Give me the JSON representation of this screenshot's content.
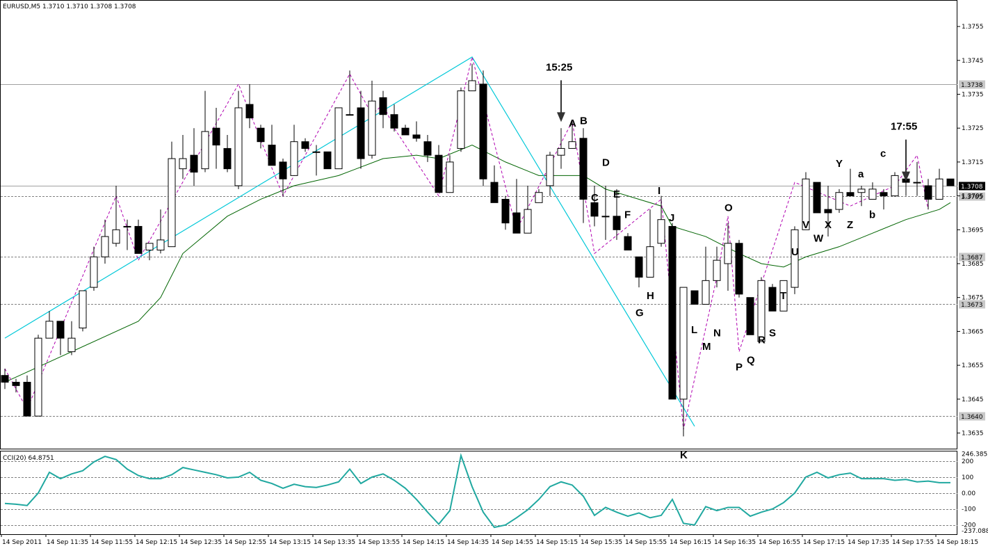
{
  "header": {
    "title": "EURUSD,M5  1.3710 1.3710 1.3708 1.3708"
  },
  "cci_header": "CCI(20) 64.8751",
  "colors": {
    "cci": "#20a8a0",
    "ma": "#006400",
    "trend": "#00c8d8",
    "zigzag": "#b000b0",
    "grid": "#808080"
  },
  "price_axis": {
    "ticks": [
      "1.3755",
      "1.3745",
      "1.3735",
      "1.3725",
      "1.3715",
      "1.3705",
      "1.3695",
      "1.3685",
      "1.3675",
      "1.3665",
      "1.3655",
      "1.3645",
      "1.3635"
    ],
    "ylim": [
      1.3631,
      1.3762
    ]
  },
  "price_levels": [
    {
      "value": 1.3738,
      "label": "1.3738",
      "style": "solid"
    },
    {
      "value": 1.3708,
      "label": "1.3708",
      "style": "solid",
      "highlight": true
    },
    {
      "value": 1.3705,
      "label": "1.3705",
      "style": "dashed"
    },
    {
      "value": 1.3687,
      "label": "1.3687",
      "style": "dashed"
    },
    {
      "value": 1.3673,
      "label": "1.3673",
      "style": "dashed"
    },
    {
      "value": 1.364,
      "label": "1.3640",
      "style": "dashed"
    }
  ],
  "cci_axis": {
    "ticks": [
      "246.3855",
      "200",
      "100",
      "0.00",
      "-100",
      "-200",
      "-237.088"
    ],
    "ylim": [
      -245,
      252
    ]
  },
  "time_axis": [
    "14 Sep 2011",
    "14 Sep 11:35",
    "14 Sep 11:55",
    "14 Sep 12:15",
    "14 Sep 12:35",
    "14 Sep 12:55",
    "14 Sep 13:15",
    "14 Sep 13:35",
    "14 Sep 13:55",
    "14 Sep 14:15",
    "14 Sep 14:35",
    "14 Sep 14:55",
    "14 Sep 15:15",
    "14 Sep 15:35",
    "14 Sep 15:55",
    "14 Sep 16:15",
    "14 Sep 16:35",
    "14 Sep 16:55",
    "14 Sep 17:15",
    "14 Sep 17:35",
    "14 Sep 17:55",
    "14 Sep 18:15"
  ],
  "annotations": [
    {
      "text": "15:25",
      "bar": 50,
      "price": 1.3742
    },
    {
      "text": "17:55",
      "bar": 81,
      "price": 1.37245
    }
  ],
  "chart_data": {
    "type": "candlestick",
    "symbol": "EURUSD",
    "timeframe": "M5",
    "candles": [
      [
        1.3652,
        1.3654,
        1.3648,
        1.365
      ],
      [
        1.365,
        1.3651,
        1.3647,
        1.3649
      ],
      [
        1.365,
        1.3652,
        1.364,
        1.364
      ],
      [
        1.364,
        1.3664,
        1.364,
        1.3663
      ],
      [
        1.3663,
        1.3671,
        1.3663,
        1.3668
      ],
      [
        1.3668,
        1.3668,
        1.3658,
        1.3663
      ],
      [
        1.3659,
        1.3668,
        1.3658,
        1.3663
      ],
      [
        1.3666,
        1.3677,
        1.3665,
        1.3677
      ],
      [
        1.3678,
        1.369,
        1.3677,
        1.3687
      ],
      [
        1.3687,
        1.3698,
        1.3685,
        1.3693
      ],
      [
        1.3691,
        1.3708,
        1.369,
        1.3695
      ],
      [
        1.3696,
        1.3698,
        1.3689,
        1.3696
      ],
      [
        1.3696,
        1.3698,
        1.3689,
        1.3688
      ],
      [
        1.3689,
        1.369,
        1.3686,
        1.3691
      ],
      [
        1.3689,
        1.3701,
        1.3688,
        1.3692
      ],
      [
        1.369,
        1.3721,
        1.369,
        1.3716
      ],
      [
        1.3713,
        1.3723,
        1.371,
        1.3716
      ],
      [
        1.3717,
        1.3725,
        1.3708,
        1.3712
      ],
      [
        1.3713,
        1.3736,
        1.3712,
        1.3724
      ],
      [
        1.3725,
        1.3731,
        1.3713,
        1.372
      ],
      [
        1.3719,
        1.3723,
        1.3712,
        1.3713
      ],
      [
        1.3708,
        1.3736,
        1.3707,
        1.3731
      ],
      [
        1.3732,
        1.3738,
        1.3725,
        1.3728
      ],
      [
        1.3725,
        1.3726,
        1.3719,
        1.3721
      ],
      [
        1.372,
        1.3726,
        1.3714,
        1.3714
      ],
      [
        1.3715,
        1.3716,
        1.3705,
        1.371
      ],
      [
        1.3711,
        1.3726,
        1.3711,
        1.3721
      ],
      [
        1.3721,
        1.3722,
        1.3718,
        1.3719
      ],
      [
        1.3718,
        1.372,
        1.3711,
        1.3718
      ],
      [
        1.3718,
        1.3718,
        1.3713,
        1.3713
      ],
      [
        1.3713,
        1.3731,
        1.3713,
        1.3731
      ],
      [
        1.3729,
        1.3742,
        1.3729,
        1.3729
      ],
      [
        1.3731,
        1.3736,
        1.3713,
        1.3716
      ],
      [
        1.3717,
        1.3739,
        1.3716,
        1.3733
      ],
      [
        1.3734,
        1.3736,
        1.3725,
        1.3729
      ],
      [
        1.3729,
        1.3732,
        1.3724,
        1.3725
      ],
      [
        1.3725,
        1.3726,
        1.3723,
        1.3723
      ],
      [
        1.3723,
        1.3727,
        1.3721,
        1.3722
      ],
      [
        1.3721,
        1.3723,
        1.3715,
        1.3717
      ],
      [
        1.3717,
        1.372,
        1.3707,
        1.3706
      ],
      [
        1.3706,
        1.3717,
        1.3706,
        1.3715
      ],
      [
        1.3719,
        1.3737,
        1.3718,
        1.3736
      ],
      [
        1.3736,
        1.3744,
        1.3736,
        1.3739
      ],
      [
        1.3738,
        1.3742,
        1.3708,
        1.371
      ],
      [
        1.3709,
        1.3714,
        1.3704,
        1.3703
      ],
      [
        1.3704,
        1.3705,
        1.3695,
        1.3697
      ],
      [
        1.37,
        1.371,
        1.3694,
        1.3694
      ],
      [
        1.3694,
        1.3708,
        1.3694,
        1.3701
      ],
      [
        1.3703,
        1.3707,
        1.3703,
        1.3706
      ],
      [
        1.3708,
        1.3718,
        1.3705,
        1.3717
      ],
      [
        1.3717,
        1.3725,
        1.3713,
        1.3719
      ],
      [
        1.3719,
        1.3727,
        1.3719,
        1.3721
      ],
      [
        1.3722,
        1.3725,
        1.3697,
        1.3704
      ],
      [
        1.3703,
        1.3708,
        1.3696,
        1.3699
      ],
      [
        1.3699,
        1.3708,
        1.3692,
        1.3699
      ],
      [
        1.3699,
        1.3707,
        1.3692,
        1.3695
      ],
      [
        1.3693,
        1.3694,
        1.3689,
        1.3689
      ],
      [
        1.3687,
        1.3687,
        1.3678,
        1.3681
      ],
      [
        1.3681,
        1.3701,
        1.3681,
        1.369
      ],
      [
        1.3691,
        1.3705,
        1.369,
        1.3698
      ],
      [
        1.3696,
        1.3697,
        1.3645,
        1.3645
      ],
      [
        1.3645,
        1.3678,
        1.3634,
        1.3678
      ],
      [
        1.3677,
        1.3677,
        1.3673,
        1.3673
      ],
      [
        1.3673,
        1.369,
        1.3673,
        1.368
      ],
      [
        1.368,
        1.369,
        1.3678,
        1.3686
      ],
      [
        1.3685,
        1.3697,
        1.3677,
        1.3691
      ],
      [
        1.3691,
        1.3692,
        1.3675,
        1.3676
      ],
      [
        1.3675,
        1.3675,
        1.3664,
        1.3664
      ],
      [
        1.3662,
        1.3681,
        1.3662,
        1.368
      ],
      [
        1.3678,
        1.3679,
        1.3671,
        1.3671
      ],
      [
        1.3671,
        1.368,
        1.3671,
        1.368
      ],
      [
        1.3678,
        1.3696,
        1.3676,
        1.3695
      ],
      [
        1.3695,
        1.3712,
        1.3695,
        1.371
      ],
      [
        1.3709,
        1.3709,
        1.37,
        1.37
      ],
      [
        1.3701,
        1.3708,
        1.3693,
        1.37
      ],
      [
        1.3701,
        1.3707,
        1.37,
        1.3706
      ],
      [
        1.3706,
        1.3713,
        1.3705,
        1.3705
      ],
      [
        1.3706,
        1.3708,
        1.3702,
        1.3707
      ],
      [
        1.3704,
        1.3709,
        1.3704,
        1.3707
      ],
      [
        1.3706,
        1.3707,
        1.3701,
        1.3705
      ],
      [
        1.3705,
        1.3712,
        1.3705,
        1.3711
      ],
      [
        1.371,
        1.3712,
        1.3705,
        1.3709
      ],
      [
        1.3709,
        1.3715,
        1.3705,
        1.3709
      ],
      [
        1.3708,
        1.371,
        1.3701,
        1.3704
      ],
      [
        1.3704,
        1.3713,
        1.3704,
        1.371
      ],
      [
        1.371,
        1.371,
        1.3708,
        1.3708
      ]
    ],
    "ma": [
      [
        0,
        1.365
      ],
      [
        6,
        1.3659
      ],
      [
        12,
        1.3668
      ],
      [
        14,
        1.3675
      ],
      [
        16,
        1.3688
      ],
      [
        20,
        1.3699
      ],
      [
        23,
        1.3704
      ],
      [
        26,
        1.3708
      ],
      [
        30,
        1.3711
      ],
      [
        34,
        1.3716
      ],
      [
        37,
        1.3717
      ],
      [
        39,
        1.3716
      ],
      [
        42,
        1.372
      ],
      [
        45,
        1.3715
      ],
      [
        48,
        1.3711
      ],
      [
        50,
        1.3711
      ],
      [
        52,
        1.3711
      ],
      [
        54,
        1.3707
      ],
      [
        57,
        1.3704
      ],
      [
        59,
        1.3702
      ],
      [
        60,
        1.3696
      ],
      [
        63,
        1.3693
      ],
      [
        66,
        1.3688
      ],
      [
        68,
        1.3685
      ],
      [
        70,
        1.3684
      ],
      [
        72,
        1.3687
      ],
      [
        75,
        1.369
      ],
      [
        78,
        1.3694
      ],
      [
        81,
        1.3698
      ],
      [
        84,
        1.3701
      ],
      [
        85,
        1.3703
      ]
    ],
    "trendline": [
      [
        0,
        1.3663
      ],
      [
        42,
        1.3746
      ],
      [
        62,
        1.3637
      ]
    ],
    "zigzag": [
      [
        0,
        1.3654
      ],
      [
        2,
        1.3642
      ],
      [
        10,
        1.3705
      ],
      [
        12,
        1.3686
      ],
      [
        21,
        1.3738
      ],
      [
        25,
        1.3705
      ],
      [
        31,
        1.3741
      ],
      [
        33,
        1.3729
      ],
      [
        34,
        1.3732
      ],
      [
        35,
        1.3725
      ],
      [
        39,
        1.3705
      ],
      [
        42,
        1.3746
      ],
      [
        46,
        1.3695
      ],
      [
        51,
        1.3727
      ],
      [
        53,
        1.3688
      ],
      [
        59,
        1.3704
      ],
      [
        61,
        1.3636
      ],
      [
        64,
        1.3681
      ],
      [
        65,
        1.3699
      ],
      [
        66,
        1.3659
      ],
      [
        71,
        1.3709
      ],
      [
        76,
        1.3702
      ],
      [
        80,
        1.3708
      ],
      [
        82,
        1.3717
      ],
      [
        83,
        1.3701
      ]
    ],
    "point_labels": [
      {
        "text": "A",
        "bar": 51,
        "price": 1.37255
      },
      {
        "text": "B",
        "bar": 52,
        "price": 1.37262
      },
      {
        "text": "C",
        "bar": 53,
        "price": 1.37035
      },
      {
        "text": "D",
        "bar": 54,
        "price": 1.37138
      },
      {
        "text": "E",
        "bar": 55,
        "price": 1.37045
      },
      {
        "text": "F",
        "bar": 56,
        "price": 1.36985
      },
      {
        "text": "G",
        "bar": 57,
        "price": 1.36695
      },
      {
        "text": "H",
        "bar": 58,
        "price": 1.36745
      },
      {
        "text": "I",
        "bar": 59,
        "price": 1.37055
      },
      {
        "text": "J",
        "bar": 60,
        "price": 1.36975
      },
      {
        "text": "K",
        "bar": 61,
        "price": 1.36275
      },
      {
        "text": "L",
        "bar": 62,
        "price": 1.36645
      },
      {
        "text": "M",
        "bar": 63,
        "price": 1.36595
      },
      {
        "text": "N",
        "bar": 64,
        "price": 1.36635
      },
      {
        "text": "O",
        "bar": 65,
        "price": 1.37005
      },
      {
        "text": "P",
        "bar": 66,
        "price": 1.36535
      },
      {
        "text": "Q",
        "bar": 67,
        "price": 1.36555
      },
      {
        "text": "R",
        "bar": 68,
        "price": 1.36615
      },
      {
        "text": "S",
        "bar": 69,
        "price": 1.36635
      },
      {
        "text": "T",
        "bar": 70,
        "price": 1.36745
      },
      {
        "text": "U",
        "bar": 71,
        "price": 1.36875
      },
      {
        "text": "V",
        "bar": 72,
        "price": 1.36955
      },
      {
        "text": "W",
        "bar": 73,
        "price": 1.36915
      },
      {
        "text": "X",
        "bar": 74,
        "price": 1.36955
      },
      {
        "text": "Y",
        "bar": 75,
        "price": 1.37135
      },
      {
        "text": "Z",
        "bar": 76,
        "price": 1.36955
      },
      {
        "text": "a",
        "bar": 77,
        "price": 1.37105
      },
      {
        "text": "b",
        "bar": 78,
        "price": 1.36985
      },
      {
        "text": "c",
        "bar": 79,
        "price": 1.37165
      }
    ],
    "cci": [
      [
        0,
        -65
      ],
      [
        1,
        -70
      ],
      [
        2,
        -78
      ],
      [
        3,
        0
      ],
      [
        4,
        130
      ],
      [
        5,
        90
      ],
      [
        6,
        120
      ],
      [
        7,
        140
      ],
      [
        8,
        195
      ],
      [
        9,
        230
      ],
      [
        10,
        210
      ],
      [
        11,
        150
      ],
      [
        12,
        110
      ],
      [
        13,
        90
      ],
      [
        14,
        90
      ],
      [
        15,
        115
      ],
      [
        16,
        160
      ],
      [
        17,
        145
      ],
      [
        18,
        130
      ],
      [
        19,
        115
      ],
      [
        20,
        95
      ],
      [
        21,
        100
      ],
      [
        22,
        130
      ],
      [
        23,
        80
      ],
      [
        24,
        60
      ],
      [
        25,
        30
      ],
      [
        26,
        55
      ],
      [
        27,
        40
      ],
      [
        28,
        35
      ],
      [
        29,
        50
      ],
      [
        30,
        70
      ],
      [
        31,
        150
      ],
      [
        32,
        60
      ],
      [
        33,
        100
      ],
      [
        34,
        120
      ],
      [
        35,
        80
      ],
      [
        36,
        30
      ],
      [
        37,
        -40
      ],
      [
        38,
        -120
      ],
      [
        39,
        -195
      ],
      [
        40,
        -110
      ],
      [
        41,
        235
      ],
      [
        42,
        40
      ],
      [
        43,
        -120
      ],
      [
        44,
        -215
      ],
      [
        45,
        -200
      ],
      [
        46,
        -155
      ],
      [
        47,
        -105
      ],
      [
        48,
        -40
      ],
      [
        49,
        40
      ],
      [
        50,
        70
      ],
      [
        51,
        50
      ],
      [
        52,
        -20
      ],
      [
        53,
        -140
      ],
      [
        54,
        -90
      ],
      [
        55,
        -120
      ],
      [
        56,
        -145
      ],
      [
        57,
        -125
      ],
      [
        58,
        -155
      ],
      [
        59,
        -140
      ],
      [
        60,
        -40
      ],
      [
        61,
        -190
      ],
      [
        62,
        -200
      ],
      [
        63,
        -85
      ],
      [
        64,
        -110
      ],
      [
        65,
        -90
      ],
      [
        66,
        -90
      ],
      [
        67,
        -145
      ],
      [
        68,
        -120
      ],
      [
        69,
        -100
      ],
      [
        70,
        -60
      ],
      [
        71,
        0
      ],
      [
        72,
        100
      ],
      [
        73,
        130
      ],
      [
        74,
        95
      ],
      [
        75,
        115
      ],
      [
        76,
        125
      ],
      [
        77,
        90
      ],
      [
        78,
        90
      ],
      [
        79,
        90
      ],
      [
        80,
        80
      ],
      [
        81,
        85
      ],
      [
        82,
        70
      ],
      [
        83,
        75
      ],
      [
        84,
        65
      ],
      [
        85,
        65
      ]
    ]
  }
}
